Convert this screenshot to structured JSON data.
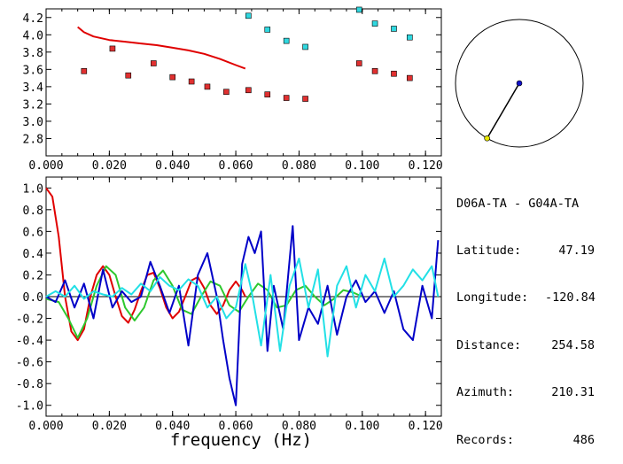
{
  "station_pair": "D06A-TA - G04A-TA",
  "info": [
    {
      "key": "Latitude:",
      "value": "47.19"
    },
    {
      "key": "Longitude:",
      "value": "-120.84"
    },
    {
      "key": "Distance:",
      "value": "254.58"
    },
    {
      "key": "Azimuth:",
      "value": "210.31"
    },
    {
      "key": "Records:",
      "value": "486"
    }
  ],
  "colors": {
    "red": "#e00000",
    "blue": "#0000c8",
    "cyan": "#22e0e6",
    "green": "#2ec82e",
    "marker_red": "#e03030",
    "marker_cyan": "#30d8e0"
  },
  "chart_data": [
    {
      "type": "scatter",
      "title": "",
      "xlabel": "",
      "ylabel": "",
      "xlim": [
        0.0,
        0.125
      ],
      "ylim": [
        2.6,
        4.3
      ],
      "x_ticks": [
        "0.000",
        "0.020",
        "0.040",
        "0.060",
        "0.080",
        "0.100",
        "0.120"
      ],
      "y_ticks": [
        "2.8",
        "3.0",
        "3.2",
        "3.4",
        "3.6",
        "3.8",
        "4.0",
        "4.2"
      ],
      "series": [
        {
          "color": "red",
          "style": "line",
          "x": [
            0.01,
            0.012,
            0.015,
            0.02,
            0.025,
            0.03,
            0.035,
            0.04,
            0.045,
            0.05,
            0.055,
            0.06,
            0.063
          ],
          "y": [
            4.09,
            4.03,
            3.98,
            3.94,
            3.92,
            3.9,
            3.88,
            3.85,
            3.82,
            3.78,
            3.72,
            3.65,
            3.61
          ]
        },
        {
          "color": "marker_red",
          "style": "markers",
          "x": [
            0.012,
            0.021,
            0.026,
            0.034,
            0.04,
            0.046,
            0.051,
            0.057,
            0.064,
            0.07,
            0.076,
            0.082,
            0.099,
            0.104,
            0.11,
            0.115
          ],
          "y": [
            3.58,
            3.84,
            3.53,
            3.67,
            3.51,
            3.46,
            3.4,
            3.34,
            3.36,
            3.31,
            3.27,
            3.26,
            3.67,
            3.58,
            3.55,
            3.5
          ]
        },
        {
          "color": "marker_cyan",
          "style": "markers",
          "x": [
            0.064,
            0.07,
            0.076,
            0.082,
            0.099,
            0.104,
            0.11,
            0.115
          ],
          "y": [
            4.22,
            4.06,
            3.93,
            3.86,
            4.29,
            4.13,
            4.07,
            3.97
          ]
        }
      ]
    },
    {
      "type": "line",
      "title": "",
      "xlabel": "frequency (Hz)",
      "ylabel": "",
      "xlim": [
        0.0,
        0.125
      ],
      "ylim": [
        -1.1,
        1.1
      ],
      "x_ticks": [
        "0.000",
        "0.020",
        "0.040",
        "0.060",
        "0.080",
        "0.100",
        "0.120"
      ],
      "y_ticks": [
        "1.0",
        "0.8",
        "0.6",
        "0.4",
        "0.2",
        "0.0",
        "-0.2",
        "-0.4",
        "-0.6",
        "-0.8",
        "-1.0"
      ],
      "zero_line": true,
      "series": [
        {
          "color": "red",
          "x": [
            0.0,
            0.002,
            0.004,
            0.006,
            0.008,
            0.01,
            0.012,
            0.014,
            0.016,
            0.018,
            0.02,
            0.022,
            0.024,
            0.026,
            0.028,
            0.03,
            0.032,
            0.034,
            0.036,
            0.038,
            0.04,
            0.042,
            0.044,
            0.046,
            0.048,
            0.05,
            0.052,
            0.054,
            0.056,
            0.058,
            0.06,
            0.062,
            0.063
          ],
          "y": [
            1.0,
            0.92,
            0.55,
            0.0,
            -0.32,
            -0.4,
            -0.3,
            0.0,
            0.2,
            0.28,
            0.2,
            0.0,
            -0.18,
            -0.24,
            -0.12,
            0.05,
            0.2,
            0.22,
            0.08,
            -0.1,
            -0.2,
            -0.14,
            0.0,
            0.15,
            0.18,
            0.08,
            -0.08,
            -0.16,
            -0.08,
            0.06,
            0.14,
            0.06,
            0.0
          ]
        },
        {
          "color": "green",
          "x": [
            0.0,
            0.004,
            0.007,
            0.01,
            0.013,
            0.016,
            0.019,
            0.022,
            0.025,
            0.028,
            0.031,
            0.034,
            0.037,
            0.04,
            0.043,
            0.046,
            0.049,
            0.052,
            0.055,
            0.058,
            0.061,
            0.064,
            0.067,
            0.07,
            0.073,
            0.076,
            0.079,
            0.082,
            0.085,
            0.088,
            0.091,
            0.094,
            0.097,
            0.1
          ],
          "y": [
            -0.02,
            -0.05,
            -0.2,
            -0.38,
            -0.2,
            0.1,
            0.28,
            0.2,
            -0.1,
            -0.22,
            -0.1,
            0.15,
            0.24,
            0.1,
            -0.12,
            -0.16,
            0.0,
            0.14,
            0.1,
            -0.08,
            -0.14,
            0.0,
            0.12,
            0.06,
            -0.1,
            -0.08,
            0.06,
            0.1,
            0.0,
            -0.08,
            -0.02,
            0.06,
            0.04,
            0.0
          ]
        },
        {
          "color": "blue",
          "x": [
            0.0,
            0.003,
            0.006,
            0.009,
            0.012,
            0.015,
            0.018,
            0.021,
            0.024,
            0.027,
            0.03,
            0.033,
            0.036,
            0.039,
            0.042,
            0.045,
            0.048,
            0.051,
            0.054,
            0.056,
            0.058,
            0.06,
            0.062,
            0.064,
            0.066,
            0.068,
            0.07,
            0.072,
            0.075,
            0.078,
            0.08,
            0.083,
            0.086,
            0.089,
            0.092,
            0.095,
            0.098,
            0.101,
            0.104,
            0.107,
            0.11,
            0.113,
            0.116,
            0.119,
            0.122,
            0.124
          ],
          "y": [
            0.0,
            -0.05,
            0.15,
            -0.1,
            0.12,
            -0.2,
            0.25,
            -0.1,
            0.05,
            -0.05,
            0.0,
            0.32,
            0.1,
            -0.15,
            0.1,
            -0.45,
            0.2,
            0.4,
            0.0,
            -0.4,
            -0.75,
            -1.0,
            0.3,
            0.55,
            0.4,
            0.6,
            -0.5,
            0.1,
            -0.3,
            0.65,
            -0.4,
            -0.1,
            -0.25,
            0.1,
            -0.35,
            0.0,
            0.15,
            -0.05,
            0.05,
            -0.15,
            0.05,
            -0.3,
            -0.4,
            0.1,
            -0.2,
            0.52
          ]
        },
        {
          "color": "cyan",
          "x": [
            0.0,
            0.003,
            0.006,
            0.009,
            0.012,
            0.015,
            0.018,
            0.021,
            0.024,
            0.027,
            0.03,
            0.033,
            0.036,
            0.039,
            0.042,
            0.045,
            0.048,
            0.051,
            0.054,
            0.057,
            0.06,
            0.063,
            0.065,
            0.068,
            0.071,
            0.074,
            0.077,
            0.08,
            0.083,
            0.086,
            0.089,
            0.092,
            0.095,
            0.098,
            0.101,
            0.104,
            0.107,
            0.11,
            0.113,
            0.116,
            0.119,
            0.122,
            0.124
          ],
          "y": [
            0.0,
            0.05,
            0.0,
            0.1,
            -0.02,
            0.05,
            0.02,
            0.0,
            0.08,
            0.02,
            0.12,
            0.05,
            0.18,
            0.1,
            0.06,
            0.16,
            0.1,
            -0.1,
            0.0,
            -0.2,
            -0.1,
            0.3,
            0.05,
            -0.45,
            0.2,
            -0.5,
            0.1,
            0.35,
            -0.1,
            0.25,
            -0.55,
            0.1,
            0.28,
            -0.1,
            0.2,
            0.05,
            0.35,
            0.0,
            0.1,
            0.25,
            0.15,
            0.28,
            0.0
          ]
        }
      ]
    }
  ],
  "map": {
    "marker_blue": "#1010c8",
    "marker_yellow": "#e8e800",
    "azimuth_deg": 210.31
  }
}
